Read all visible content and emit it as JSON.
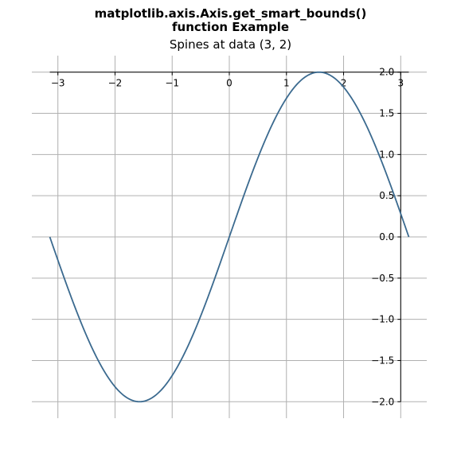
{
  "suptitle": {
    "line1": "matplotlib.axis.Axis.get_smart_bounds()",
    "line2": "function Example"
  },
  "chart_data": {
    "type": "line",
    "title": "Spines at data (3, 2)",
    "xlabel": "",
    "ylabel": "",
    "xlim": [
      -3.14159,
      3.14159
    ],
    "ylim": [
      -2.0,
      2.0
    ],
    "grid": true,
    "spines": {
      "x_axis_at_y": 2,
      "y_axis_at_x": 3
    },
    "x_ticks": [
      -3,
      -2,
      -1,
      0,
      1,
      2,
      3
    ],
    "x_tick_labels": [
      "−3",
      "−2",
      "−1",
      "0",
      "1",
      "2",
      "3"
    ],
    "y_ticks": [
      2.0,
      1.5,
      1.0,
      0.5,
      0.0,
      -0.5,
      -1.0,
      -1.5,
      -2.0
    ],
    "y_tick_labels": [
      "2.0",
      "1.5",
      "1.0",
      "0.5",
      "0.0",
      "−0.5",
      "−1.0",
      "−1.5",
      "−2.0"
    ],
    "series": [
      {
        "function": "y = 2 sin(x)",
        "color": "#3b6a8f",
        "x": [
          -3.1416,
          -2.7489,
          -2.3562,
          -1.9635,
          -1.5708,
          -1.1781,
          -0.7854,
          -0.3927,
          0.0,
          0.3927,
          0.7854,
          1.1781,
          1.5708,
          1.9635,
          2.3562,
          2.7489,
          3.1416
        ],
        "y": [
          0.0,
          -0.765,
          -1.414,
          -1.848,
          -2.0,
          -1.848,
          -1.414,
          -0.765,
          0.0,
          0.765,
          1.414,
          1.848,
          2.0,
          1.848,
          1.414,
          0.765,
          0.0
        ]
      }
    ]
  },
  "colors": {
    "line": "#3b6a8f",
    "grid": "#b0b0b0",
    "spine": "#000000"
  }
}
